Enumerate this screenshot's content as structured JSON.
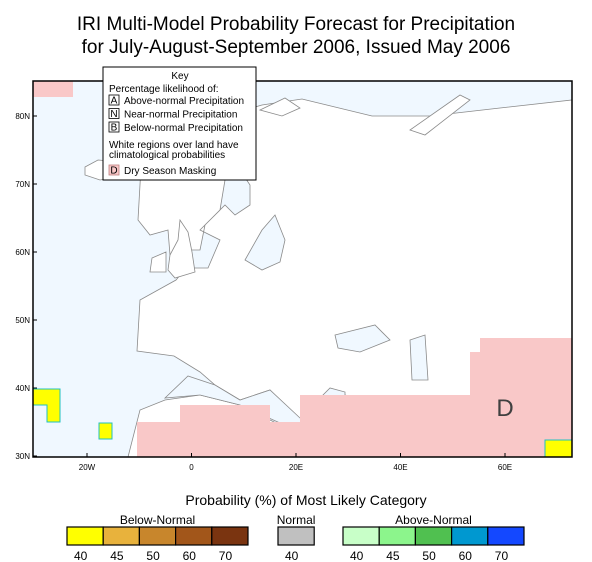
{
  "title": [
    "IRI Multi-Model Probability Forecast for Precipitation",
    "for July-August-September 2006, Issued May 2006"
  ],
  "key": {
    "title": "Key",
    "subtitle": "Percentage likelihood of:",
    "items": [
      {
        "symbol": "A",
        "label": "Above-normal Precipitation"
      },
      {
        "symbol": "N",
        "label": "Near-normal Precipitation"
      },
      {
        "symbol": "B",
        "label": "Below-normal Precipitation"
      }
    ],
    "note": [
      "White regions over land have",
      "climatological probabilities"
    ],
    "dry": {
      "symbol": "D",
      "label": "Dry Season Masking"
    }
  },
  "map": {
    "lat_labels": [
      "80N",
      "70N",
      "60N",
      "50N",
      "40N",
      "30N"
    ],
    "lon_labels": [
      "20W",
      "0",
      "20E",
      "40E",
      "60E"
    ],
    "annotation": "D"
  },
  "legend": {
    "title": "Probability (%) of Most Likely Category",
    "groups": [
      {
        "name": "Below-Normal",
        "levels": [
          40,
          45,
          50,
          60,
          70
        ],
        "colors": [
          "#ffff00",
          "#e8b23c",
          "#c8862c",
          "#a2561a",
          "#7a3410"
        ]
      },
      {
        "name": "Normal",
        "levels": [
          40
        ],
        "colors": [
          "#c0c0c0"
        ]
      },
      {
        "name": "Above-Normal",
        "levels": [
          40,
          45,
          50,
          60,
          70
        ],
        "colors": [
          "#c8ffc8",
          "#8cf58c",
          "#50c050",
          "#0098d0",
          "#1448ff"
        ]
      }
    ]
  }
}
